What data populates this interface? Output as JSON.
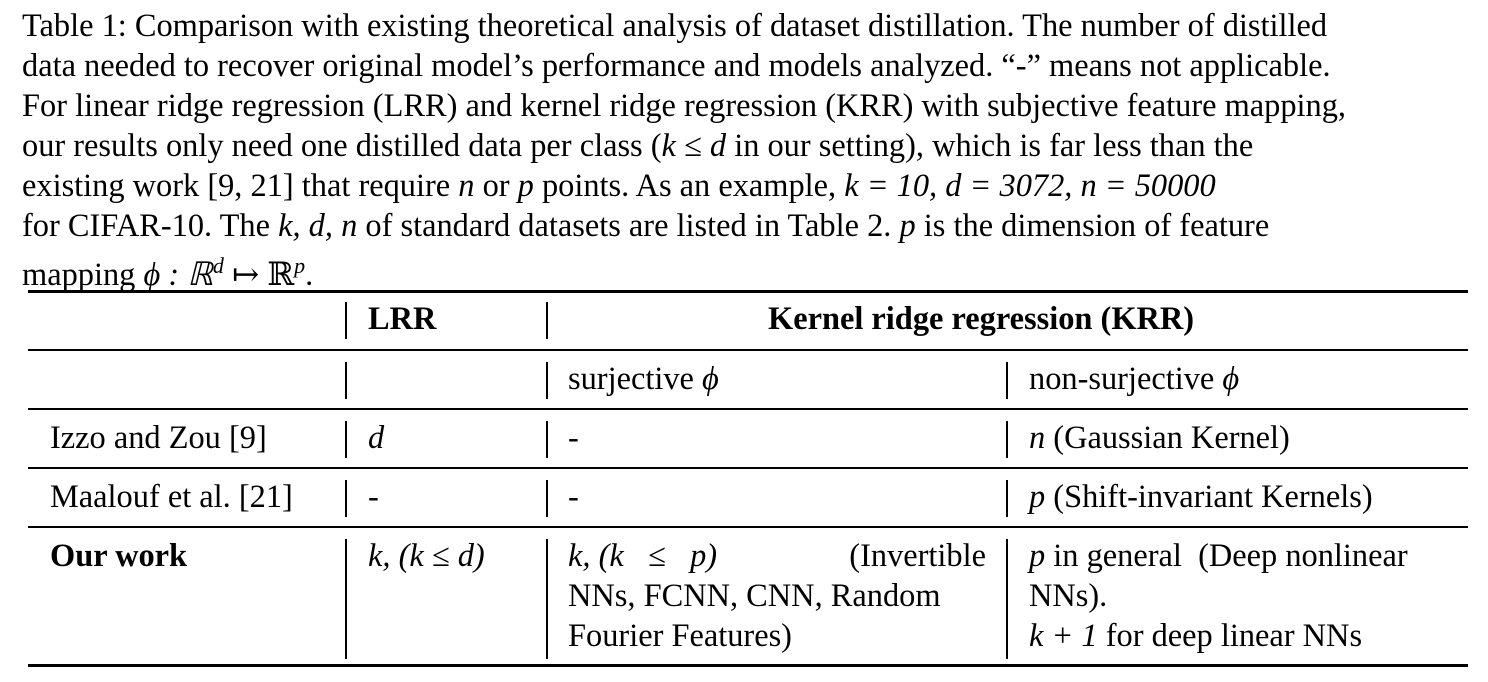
{
  "caption": {
    "line1": "Table 1: Comparison with existing theoretical analysis of dataset distillation. The number of distilled",
    "line2": "data needed to recover original model’s performance and models analyzed. “-” means not applicable.",
    "line3": "For linear ridge regression (LRR) and kernel ridge regression (KRR) with subjective feature mapping,",
    "line4_a": "our results only need one distilled data per class (",
    "line4_math": "k ≤ d",
    "line4_b": " in our setting), which is far less than the",
    "line5_a": "existing work [9, 21] that require ",
    "line5_n": "n",
    "line5_or": " or ",
    "line5_p": "p",
    "line5_b": " points.  As an example, ",
    "line5_math": "k = 10, d = 3072, n = 50000",
    "line6_a": "for CIFAR-10. The ",
    "line6_math": "k, d, n",
    "line6_b": " of standard datasets are listed in Table 2. ",
    "line6_p": "p",
    "line6_c": " is the dimension of feature",
    "line7_a": "mapping ",
    "line7_math": "ϕ : ℝ",
    "line7_sup1": "d",
    "line7_arrow": " ↦ ℝ",
    "line7_sup2": "p",
    "line7_end": "."
  },
  "table": {
    "header": {
      "lrr": "LRR",
      "krr": "Kernel ridge regression (KRR)"
    },
    "subheader": {
      "surjective": "surjective ",
      "non_surjective": "non-surjective ",
      "phi": "ϕ"
    },
    "rows": [
      {
        "method": "Izzo and Zou [9]",
        "lrr": "d",
        "surj": "-",
        "nonsurj_var": "n",
        "nonsurj_text": " (Gaussian Kernel)"
      },
      {
        "method": "Maalouf et al. [21]",
        "lrr": "-",
        "surj": "-",
        "nonsurj_var": "p",
        "nonsurj_text": " (Shift-invariant Kernels)"
      },
      {
        "method": "Our work",
        "lrr": "k, (k ≤ d)",
        "surj_math": "k, (k   ≤   p)",
        "surj_text1": "(Invertible",
        "surj_line2": "NNs, FCNN, CNN, Random",
        "surj_line3": "Fourier Features)",
        "nonsurj_var": "p",
        "nonsurj_line1": " in general  (Deep nonlinear",
        "nonsurj_line2": "NNs).",
        "nonsurj_line3_math": "k + 1",
        "nonsurj_line3_text": " for deep linear NNs"
      }
    ]
  }
}
